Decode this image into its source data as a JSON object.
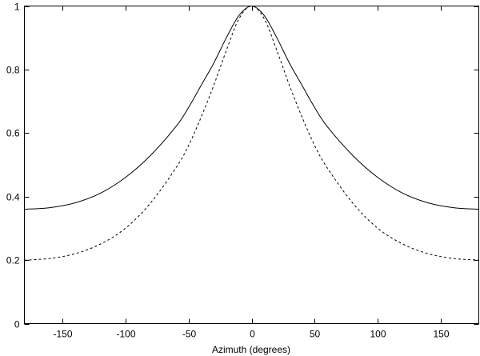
{
  "chart_data": {
    "type": "line",
    "title": "",
    "xlabel": "Azimuth (degrees)",
    "ylabel": "",
    "xlim": [
      -180,
      180
    ],
    "ylim": [
      0,
      1
    ],
    "xticks": [
      -150,
      -100,
      -50,
      0,
      50,
      100,
      150
    ],
    "yticks": [
      0,
      0.2,
      0.4,
      0.6,
      0.8,
      1
    ],
    "ytick_labels": [
      "0",
      "0.2",
      "0.4",
      "0.6",
      "0.8",
      "1"
    ],
    "grid": false,
    "legend": "none",
    "x": [
      -180,
      -160,
      -140,
      -120,
      -100,
      -80,
      -60,
      -50,
      -40,
      -30,
      -20,
      -10,
      0,
      10,
      20,
      30,
      40,
      50,
      60,
      80,
      100,
      120,
      140,
      160,
      180
    ],
    "series": [
      {
        "style": "solid",
        "color": "#000000",
        "values": [
          0.36,
          0.365,
          0.38,
          0.41,
          0.46,
          0.53,
          0.62,
          0.68,
          0.75,
          0.82,
          0.9,
          0.97,
          1.0,
          0.97,
          0.9,
          0.82,
          0.75,
          0.68,
          0.62,
          0.53,
          0.46,
          0.41,
          0.38,
          0.365,
          0.36
        ]
      },
      {
        "style": "dashed",
        "color": "#000000",
        "values": [
          0.2,
          0.205,
          0.22,
          0.25,
          0.3,
          0.38,
          0.49,
          0.56,
          0.65,
          0.75,
          0.86,
          0.96,
          1.0,
          0.96,
          0.86,
          0.75,
          0.65,
          0.56,
          0.49,
          0.38,
          0.3,
          0.25,
          0.22,
          0.205,
          0.2
        ]
      }
    ]
  }
}
